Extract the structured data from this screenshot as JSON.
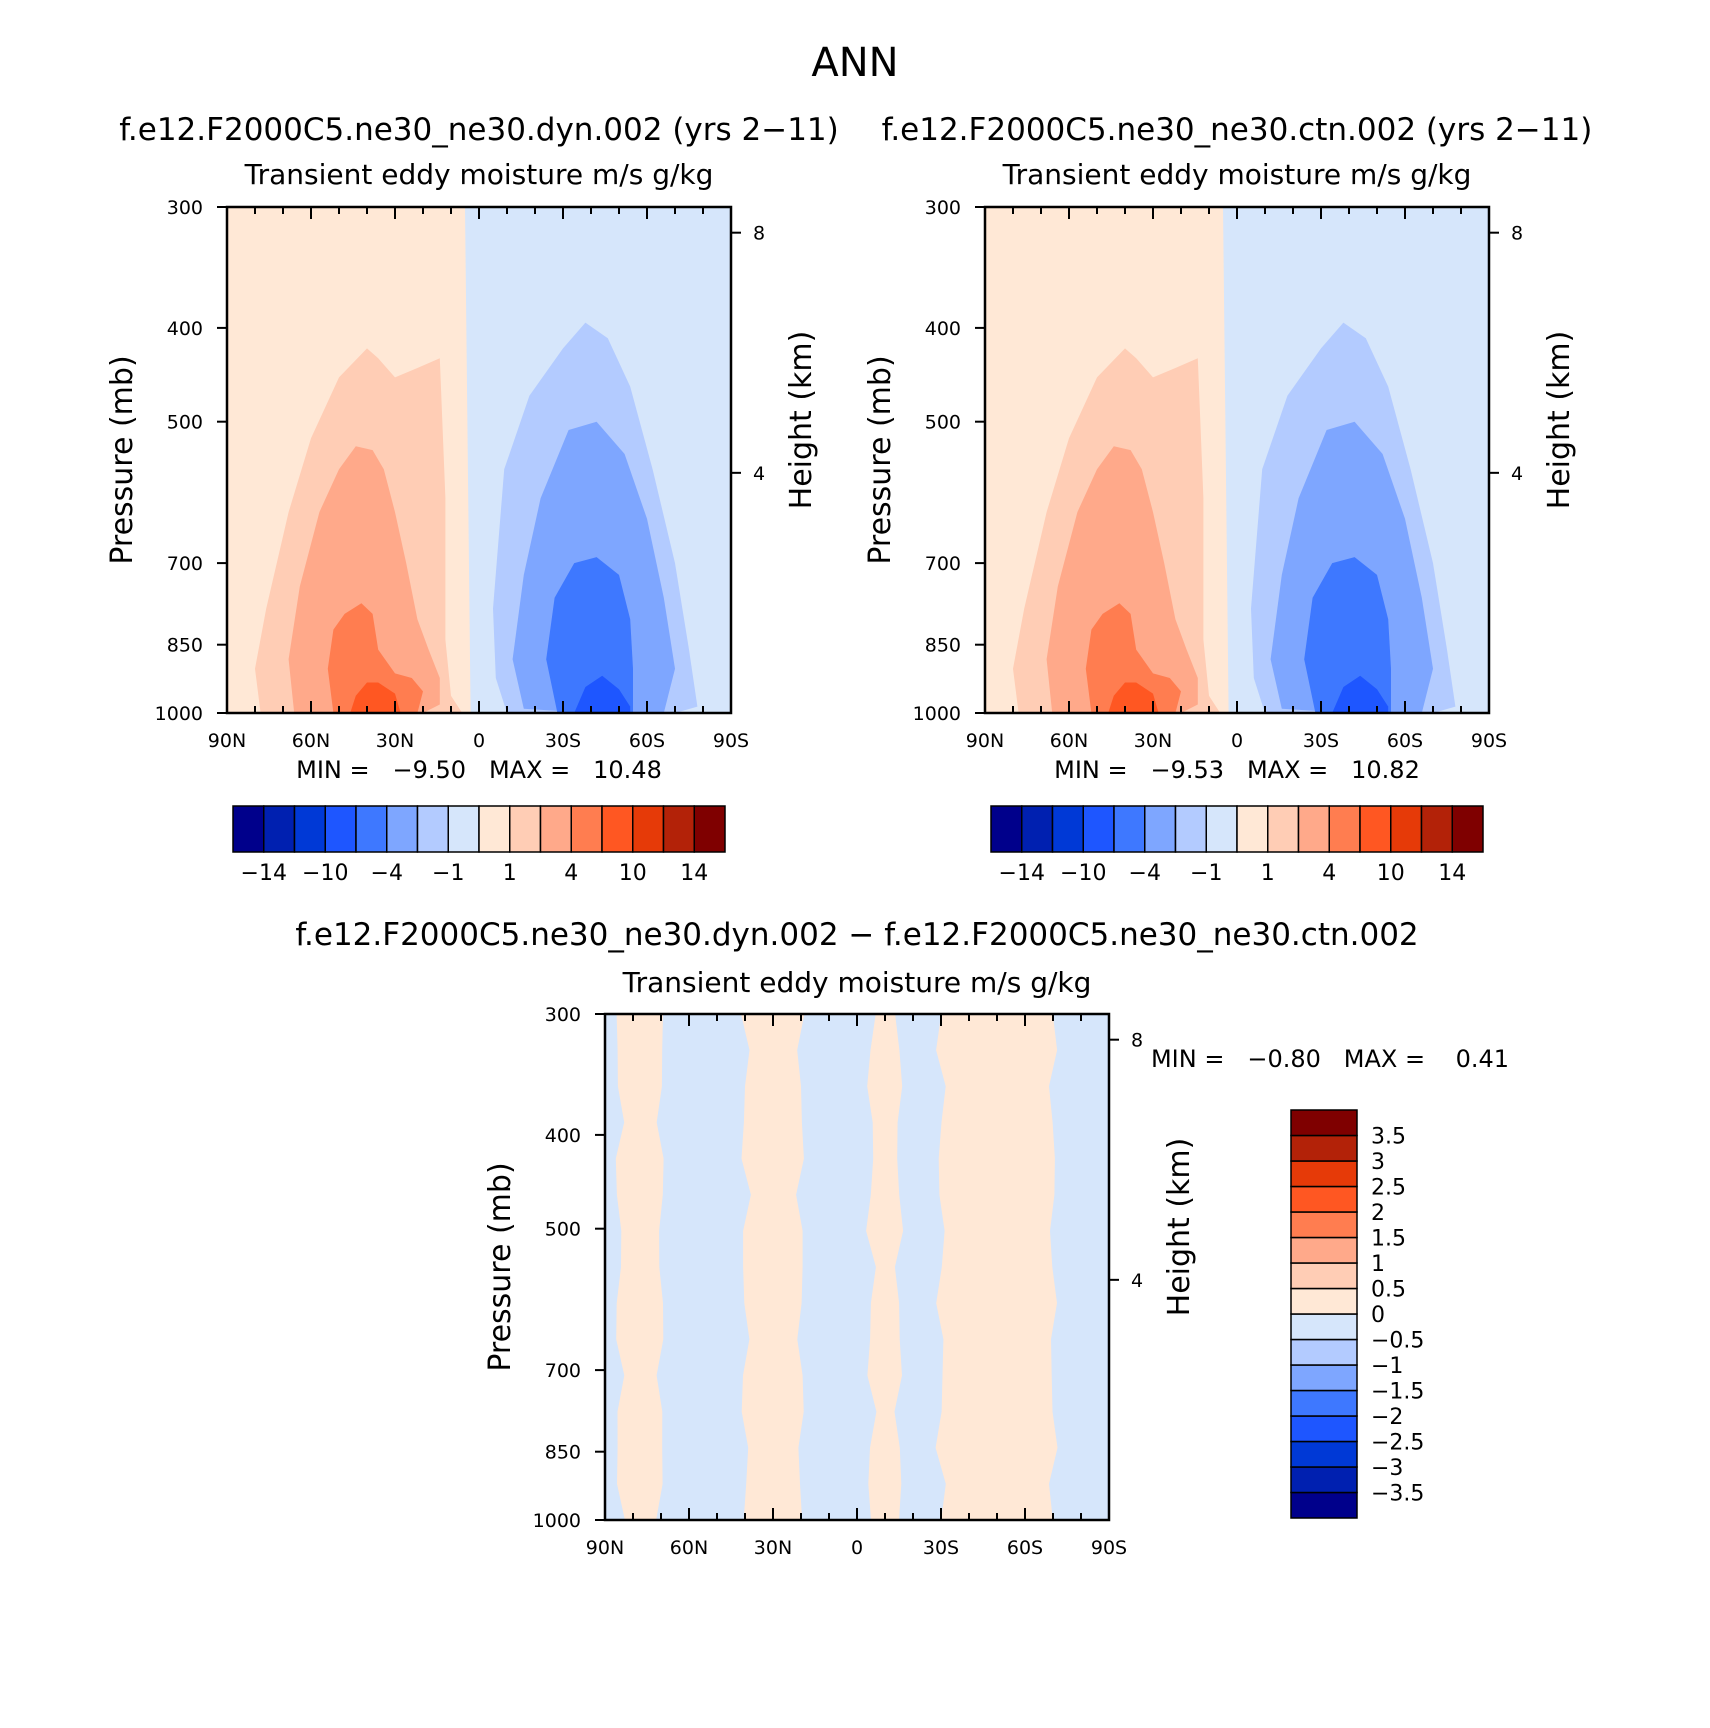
{
  "figure_title": "ANN",
  "chart_data": [
    {
      "type": "heatmap",
      "title": "f.e12.F2000C5.ne30_ne30.dyn.002 (yrs 2−11)",
      "subtitle": "Transient  eddy  moisture m/s  g/kg",
      "ylabel": "Pressure  (mb)",
      "y2label": "Height  (km)",
      "xlabel": "",
      "x_ticks": [
        "90N",
        "60N",
        "30N",
        "0",
        "30S",
        "60S",
        "90S"
      ],
      "x_range": [
        90,
        -90
      ],
      "y_ticks": [
        300,
        400,
        500,
        700,
        850,
        1000
      ],
      "y_range": [
        1000,
        300
      ],
      "y_scale": "log",
      "y2_ticks": [
        4,
        8
      ],
      "stats": "MIN =   −9.50   MAX =   10.48",
      "colorbar": {
        "orientation": "horizontal",
        "levels": [
          -14,
          -12,
          -10,
          -7,
          -4,
          -2,
          -1,
          0,
          1,
          2,
          4,
          7,
          10,
          12,
          14
        ],
        "labels": [
          "−14",
          "−10",
          "−4",
          "−1",
          "1",
          "4",
          "10",
          "14"
        ],
        "colors": [
          "#00008b",
          "#0020b0",
          "#0039d6",
          "#1e56ff",
          "#3e78ff",
          "#7ea6ff",
          "#b3cbff",
          "#d6e6fb",
          "#ffe8d6",
          "#ffcdb5",
          "#ffa98a",
          "#ff7d50",
          "#ff5722",
          "#e63a08",
          "#b32208",
          "#7f0000"
        ]
      },
      "features": [
        {
          "name": "northern-positive-core",
          "lat_center": 38,
          "value_max": 10.48,
          "top_pressure": 420
        },
        {
          "name": "southern-negative-core",
          "lat_center": -45,
          "value_min": -9.5,
          "top_pressure": 390
        }
      ]
    },
    {
      "type": "heatmap",
      "title": "f.e12.F2000C5.ne30_ne30.ctn.002 (yrs 2−11)",
      "subtitle": "Transient  eddy  moisture m/s  g/kg",
      "ylabel": "Pressure  (mb)",
      "y2label": "Height  (km)",
      "xlabel": "",
      "x_ticks": [
        "90N",
        "60N",
        "30N",
        "0",
        "30S",
        "60S",
        "90S"
      ],
      "x_range": [
        90,
        -90
      ],
      "y_ticks": [
        300,
        400,
        500,
        700,
        850,
        1000
      ],
      "y_range": [
        1000,
        300
      ],
      "y_scale": "log",
      "y2_ticks": [
        4,
        8
      ],
      "stats": "MIN =   −9.53   MAX =   10.82",
      "colorbar": {
        "orientation": "horizontal",
        "levels": [
          -14,
          -12,
          -10,
          -7,
          -4,
          -2,
          -1,
          0,
          1,
          2,
          4,
          7,
          10,
          12,
          14
        ],
        "labels": [
          "−14",
          "−10",
          "−4",
          "−1",
          "1",
          "4",
          "10",
          "14"
        ],
        "colors": [
          "#00008b",
          "#0020b0",
          "#0039d6",
          "#1e56ff",
          "#3e78ff",
          "#7ea6ff",
          "#b3cbff",
          "#d6e6fb",
          "#ffe8d6",
          "#ffcdb5",
          "#ffa98a",
          "#ff7d50",
          "#ff5722",
          "#e63a08",
          "#b32208",
          "#7f0000"
        ]
      },
      "features": [
        {
          "name": "northern-positive-core",
          "lat_center": 38,
          "value_max": 10.82,
          "top_pressure": 420
        },
        {
          "name": "southern-negative-core",
          "lat_center": -45,
          "value_min": -9.53,
          "top_pressure": 390
        }
      ]
    },
    {
      "type": "heatmap",
      "title": "f.e12.F2000C5.ne30_ne30.dyn.002 − f.e12.F2000C5.ne30_ne30.ctn.002",
      "subtitle": "Transient  eddy  moisture m/s  g/kg",
      "ylabel": "Pressure  (mb)",
      "y2label": "Height  (km)",
      "xlabel": "",
      "x_ticks": [
        "90N",
        "60N",
        "30N",
        "0",
        "30S",
        "60S",
        "90S"
      ],
      "x_range": [
        90,
        -90
      ],
      "y_ticks": [
        300,
        400,
        500,
        700,
        850,
        1000
      ],
      "y_range": [
        1000,
        300
      ],
      "y_scale": "log",
      "y2_ticks": [
        4,
        8
      ],
      "stats": "MIN =   −0.80   MAX =    0.41",
      "colorbar": {
        "orientation": "vertical",
        "levels": [
          -3.5,
          -3,
          -2.5,
          -2,
          -1.5,
          -1,
          -0.5,
          0,
          0.5,
          1,
          1.5,
          2,
          2.5,
          3,
          3.5
        ],
        "labels": [
          "−3.5",
          "−3",
          "−2.5",
          "−2",
          "−1.5",
          "−1",
          "−0.5",
          "0",
          "0.5",
          "1",
          "1.5",
          "2",
          "2.5",
          "3",
          "3.5"
        ],
        "colors": [
          "#00008b",
          "#0020b0",
          "#0039d6",
          "#1e56ff",
          "#3e78ff",
          "#7ea6ff",
          "#b3cbff",
          "#d6e6fb",
          "#ffe8d6",
          "#ffcdb5",
          "#ffa98a",
          "#ff7d50",
          "#ff5722",
          "#e63a08",
          "#b32208",
          "#7f0000"
        ]
      },
      "features": [
        {
          "name": "positive-band",
          "lat_start": 85,
          "lat_end": 70,
          "value_sign": "+"
        },
        {
          "name": "negative-band",
          "lat_start": 70,
          "lat_end": 40,
          "value_sign": "-"
        },
        {
          "name": "positive-band",
          "lat_start": 40,
          "lat_end": 20,
          "value_sign": "+"
        },
        {
          "name": "negative-band",
          "lat_start": 20,
          "lat_end": -5,
          "value_sign": "-"
        },
        {
          "name": "positive-band",
          "lat_start": -5,
          "lat_end": -15,
          "value_sign": "+"
        },
        {
          "name": "negative-band",
          "lat_start": -15,
          "lat_end": -30,
          "value_sign": "-"
        },
        {
          "name": "positive-band",
          "lat_start": -30,
          "lat_end": -70,
          "value_sign": "+"
        },
        {
          "name": "negative-band",
          "lat_start": -70,
          "lat_end": -85,
          "value_sign": "-"
        }
      ]
    }
  ]
}
